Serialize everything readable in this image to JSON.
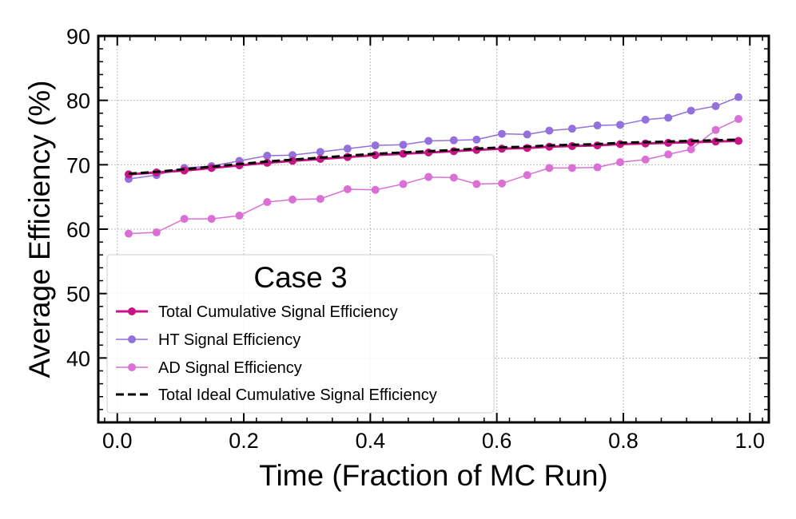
{
  "chart_data": {
    "type": "line",
    "title": "Case 3",
    "xlabel": "Time (Fraction of MC Run)",
    "ylabel": "Average Efficiency (%)",
    "xlim": [
      -0.03,
      1.03
    ],
    "ylim": [
      30,
      90
    ],
    "xticks": [
      0.0,
      0.2,
      0.4,
      0.6,
      0.8,
      1.0
    ],
    "xtick_labels": [
      "0.0",
      "0.2",
      "0.4",
      "0.6",
      "0.8",
      "1.0"
    ],
    "yticks": [
      40,
      50,
      60,
      70,
      80,
      90
    ],
    "ytick_labels": [
      "40",
      "50",
      "60",
      "70",
      "80",
      "90"
    ],
    "grid": true,
    "legend_position": "lower-left",
    "x": [
      0.018,
      0.062,
      0.106,
      0.149,
      0.193,
      0.237,
      0.277,
      0.321,
      0.364,
      0.408,
      0.452,
      0.492,
      0.532,
      0.568,
      0.608,
      0.648,
      0.683,
      0.719,
      0.759,
      0.795,
      0.835,
      0.871,
      0.907,
      0.946,
      0.982
    ],
    "series": [
      {
        "name": "Total Cumulative Signal Efficiency",
        "color": "#c71585",
        "style": "solid-marker-thick",
        "values": [
          68.5,
          68.8,
          69.1,
          69.5,
          69.9,
          70.3,
          70.6,
          70.9,
          71.2,
          71.5,
          71.7,
          71.9,
          72.1,
          72.3,
          72.5,
          72.6,
          72.8,
          72.9,
          73.0,
          73.2,
          73.3,
          73.4,
          73.5,
          73.6,
          73.7
        ]
      },
      {
        "name": "HT Signal Efficiency",
        "color": "#9370db",
        "style": "solid-marker",
        "values": [
          67.8,
          68.4,
          69.5,
          69.8,
          70.6,
          71.4,
          71.5,
          72.0,
          72.5,
          73.0,
          73.1,
          73.7,
          73.8,
          73.9,
          74.8,
          74.7,
          75.3,
          75.6,
          76.1,
          76.2,
          77.0,
          77.3,
          78.4,
          79.1,
          80.5
        ]
      },
      {
        "name": "AD Signal Efficiency",
        "color": "#da70d6",
        "style": "solid-marker",
        "values": [
          59.3,
          59.5,
          61.6,
          61.6,
          62.1,
          64.2,
          64.6,
          64.7,
          66.2,
          66.1,
          67.0,
          68.1,
          68.0,
          67.0,
          67.1,
          68.4,
          69.5,
          69.5,
          69.6,
          70.4,
          70.8,
          71.6,
          72.4,
          75.4,
          77.1
        ]
      },
      {
        "name": "Total Ideal Cumulative Signal Efficiency",
        "color": "#000000",
        "style": "dashed",
        "values": [
          68.6,
          68.9,
          69.3,
          69.7,
          70.1,
          70.5,
          70.8,
          71.1,
          71.4,
          71.7,
          71.9,
          72.1,
          72.3,
          72.5,
          72.7,
          72.8,
          73.0,
          73.1,
          73.2,
          73.4,
          73.5,
          73.6,
          73.7,
          73.8,
          73.9
        ]
      }
    ]
  }
}
